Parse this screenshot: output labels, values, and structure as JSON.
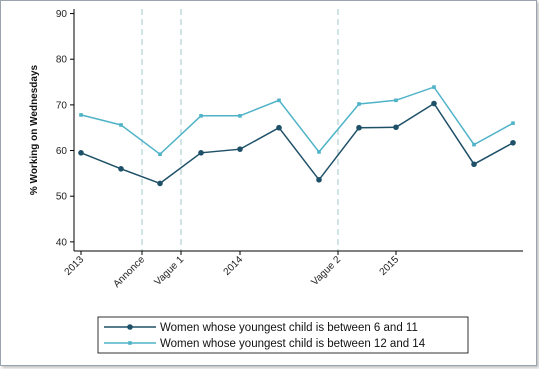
{
  "chart_data": {
    "type": "line",
    "title": "",
    "xlabel": "",
    "ylabel": "% Working on Wednesdays",
    "ylim": [
      38,
      91
    ],
    "yticks": [
      40,
      50,
      60,
      70,
      80,
      90
    ],
    "x_labels": [
      "2013",
      "Annonce",
      "Vague 1",
      "2014",
      "Vague 2",
      "2015"
    ],
    "grid": false,
    "legend_position": "bottom",
    "series": [
      {
        "name": "Women whose youngest child is between 6 and 11",
        "color": "#1e5068",
        "marker": "circle",
        "values": [
          59.5,
          56.0,
          52.8,
          59.5,
          60.3,
          65.0,
          53.6,
          65.0,
          65.1,
          70.3,
          57.0,
          61.7
        ]
      },
      {
        "name": "Women whose youngest child is between 12 and 14",
        "color": "#4fb3c8",
        "marker": "square",
        "values": [
          67.8,
          65.6,
          59.2,
          67.6,
          67.6,
          71.0,
          59.7,
          70.2,
          71.0,
          73.9,
          61.3,
          66.0
        ]
      }
    ]
  }
}
